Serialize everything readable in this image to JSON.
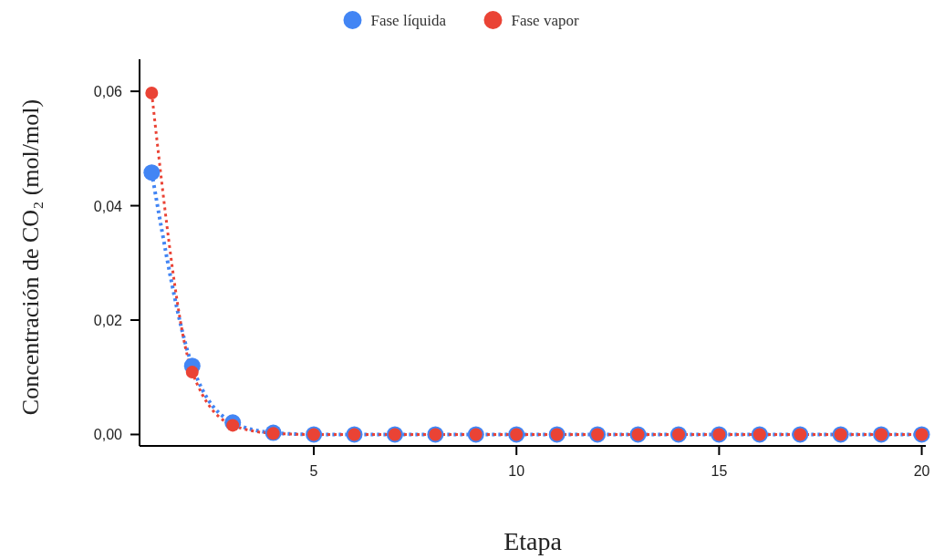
{
  "chart_data": {
    "type": "line",
    "xlabel": "Etapa",
    "ylabel": "Concentración de CO₂ (mol/mol)",
    "x": [
      1,
      2,
      3,
      4,
      5,
      6,
      7,
      8,
      9,
      10,
      11,
      12,
      13,
      14,
      15,
      16,
      17,
      18,
      19,
      20
    ],
    "series": [
      {
        "name": "Fase líquida",
        "color": "#4285f4",
        "values": [
          0.0458,
          0.012,
          0.0021,
          0.0003,
          0,
          0,
          0,
          0,
          0,
          0,
          0,
          0,
          0,
          0,
          0,
          0,
          0,
          0,
          0,
          0
        ]
      },
      {
        "name": "Fase vapor",
        "color": "#ea4335",
        "values": [
          0.0597,
          0.0109,
          0.0016,
          0.0002,
          0,
          0,
          0,
          0,
          0,
          0,
          0,
          0,
          0,
          0,
          0,
          0,
          0,
          0,
          0,
          0
        ]
      }
    ],
    "xlim": [
      0.7,
      20.1
    ],
    "xticks": [
      5,
      10,
      15,
      20
    ],
    "ylim": [
      -0.002,
      0.0656
    ],
    "yticks": [
      {
        "value": 0,
        "label": "0,00"
      },
      {
        "value": 0.02,
        "label": "0,02"
      },
      {
        "value": 0.04,
        "label": "0,04"
      },
      {
        "value": 0.06,
        "label": "0,06"
      }
    ],
    "grid": false,
    "legend": "top",
    "marker": "circle",
    "line_style": "dotted"
  }
}
